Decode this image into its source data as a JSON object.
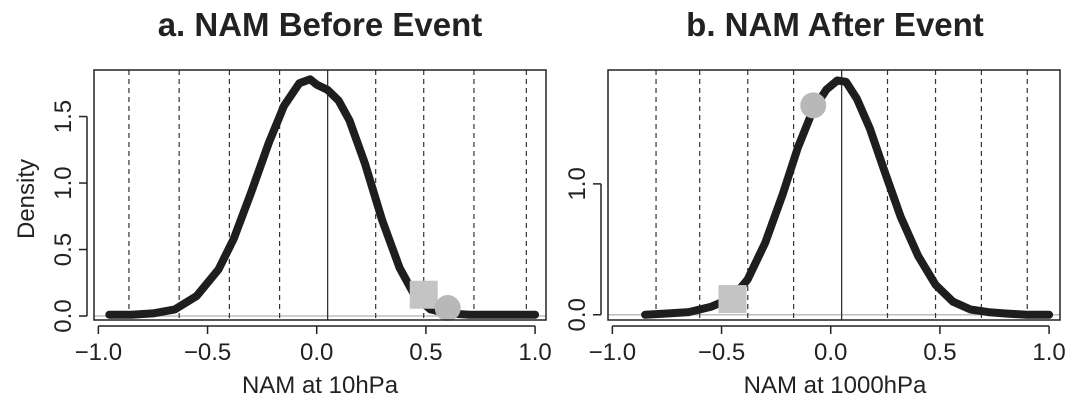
{
  "chart_data": [
    {
      "type": "line",
      "title": "a. NAM Before Event",
      "xlabel": "NAM at 10hPa",
      "ylabel": "Density",
      "xlim": [
        -1.02,
        1.05
      ],
      "ylim": [
        -0.03,
        1.85
      ],
      "xticks": [
        -1.0,
        -0.5,
        0.0,
        0.5,
        1.0
      ],
      "xtick_labels": [
        "−1.0",
        "−0.5",
        "0.0",
        "0.5",
        "1.0"
      ],
      "yticks": [
        0.0,
        0.5,
        1.0,
        1.5
      ],
      "ytick_labels": [
        "0.0",
        "0.5",
        "1.0",
        "1.5"
      ],
      "dashed_vlines": [
        -0.86,
        -0.63,
        -0.4,
        -0.17,
        0.27,
        0.49,
        0.72,
        0.96
      ],
      "solid_vline": 0.05,
      "baseline": 0.0,
      "series": [
        {
          "x": [
            -0.95,
            -0.85,
            -0.75,
            -0.65,
            -0.55,
            -0.45,
            -0.38,
            -0.3,
            -0.22,
            -0.15,
            -0.08,
            -0.03,
            0.0,
            0.05,
            0.1,
            0.15,
            0.22,
            0.3,
            0.38,
            0.45,
            0.52,
            0.6,
            0.7,
            0.8,
            0.9,
            1.0
          ],
          "y": [
            0.01,
            0.01,
            0.02,
            0.05,
            0.15,
            0.35,
            0.58,
            0.93,
            1.3,
            1.58,
            1.75,
            1.78,
            1.74,
            1.7,
            1.62,
            1.47,
            1.15,
            0.72,
            0.36,
            0.15,
            0.05,
            0.02,
            0.01,
            0.01,
            0.01,
            0.01
          ]
        }
      ],
      "markers": [
        {
          "shape": "square",
          "x": 0.49,
          "y": 0.16,
          "color": "#c4c4c4"
        },
        {
          "shape": "circle",
          "x": 0.6,
          "y": 0.06,
          "color": "#b8b8b8"
        }
      ],
      "colors": {
        "line": "#1e1e1e",
        "baseline": "#bdbdbd"
      }
    },
    {
      "type": "line",
      "title": "b. NAM After Event",
      "xlabel": "NAM at 1000hPa",
      "ylabel": "",
      "xlim": [
        -1.02,
        1.05
      ],
      "ylim": [
        -0.04,
        1.87
      ],
      "xticks": [
        -1.0,
        -0.5,
        0.0,
        0.5,
        1.0
      ],
      "xtick_labels": [
        "−1.0",
        "−0.5",
        "0.0",
        "0.5",
        "1.0"
      ],
      "yticks": [
        0.0,
        1.0
      ],
      "ytick_labels": [
        "0.0",
        "1.0"
      ],
      "dashed_vlines": [
        -0.8,
        -0.6,
        -0.38,
        -0.17,
        0.26,
        0.48,
        0.69,
        0.9
      ],
      "solid_vline": 0.05,
      "baseline": 0.0,
      "series": [
        {
          "x": [
            -0.85,
            -0.75,
            -0.65,
            -0.55,
            -0.45,
            -0.38,
            -0.3,
            -0.22,
            -0.15,
            -0.08,
            -0.02,
            0.03,
            0.07,
            0.12,
            0.18,
            0.25,
            0.32,
            0.4,
            0.48,
            0.56,
            0.64,
            0.72,
            0.8,
            0.9,
            1.0
          ],
          "y": [
            0.0,
            0.01,
            0.02,
            0.06,
            0.13,
            0.27,
            0.55,
            0.92,
            1.28,
            1.57,
            1.72,
            1.79,
            1.78,
            1.65,
            1.42,
            1.08,
            0.75,
            0.45,
            0.23,
            0.1,
            0.04,
            0.02,
            0.01,
            0.0,
            0.0
          ]
        }
      ],
      "markers": [
        {
          "shape": "square",
          "x": -0.45,
          "y": 0.12,
          "color": "#c4c4c4"
        },
        {
          "shape": "circle",
          "x": -0.08,
          "y": 1.6,
          "color": "#b8b8b8"
        }
      ],
      "colors": {
        "line": "#1e1e1e",
        "baseline": "#bdbdbd"
      }
    }
  ]
}
